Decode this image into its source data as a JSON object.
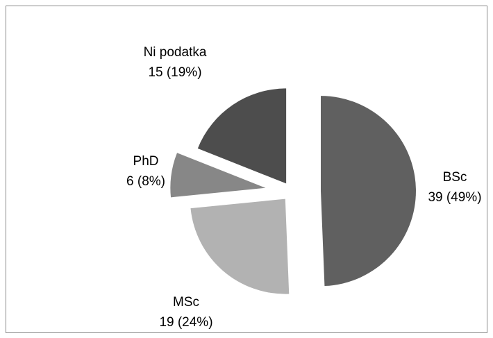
{
  "chart_data": {
    "type": "pie",
    "categories": [
      "BSc",
      "MSc",
      "PhD",
      "Ni podatka"
    ],
    "values": [
      39,
      19,
      6,
      15
    ],
    "value_labels": [
      "39 (49%)",
      "19 (24%)",
      "6 (8%)",
      "15 (19%)"
    ],
    "colors": [
      "#606060",
      "#b2b2b2",
      "#878787",
      "#4d4d4d"
    ]
  }
}
